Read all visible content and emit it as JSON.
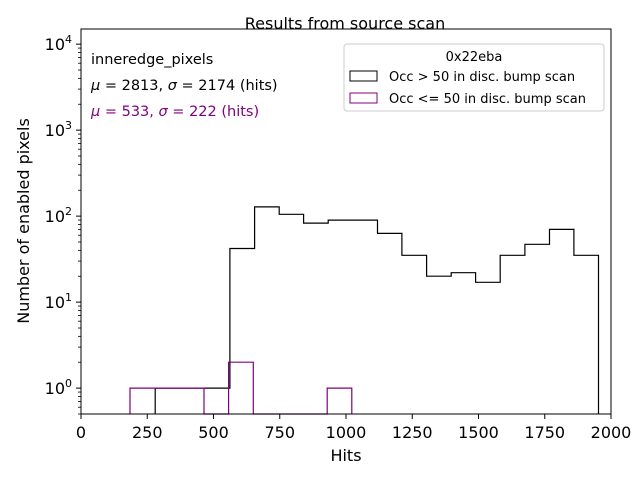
{
  "chart_data": {
    "type": "histogram",
    "title": "Results from source scan",
    "xlabel": "Hits",
    "ylabel": "Number of enabled pixels",
    "xlim": [
      0,
      2000
    ],
    "ylim": [
      0.5,
      15000
    ],
    "yscale": "log",
    "x_ticks": [
      {
        "value": 0,
        "label": "0"
      },
      {
        "value": 250,
        "label": "250"
      },
      {
        "value": 500,
        "label": "500"
      },
      {
        "value": 750,
        "label": "750"
      },
      {
        "value": 1000,
        "label": "1000"
      },
      {
        "value": 1250,
        "label": "1250"
      },
      {
        "value": 1500,
        "label": "1500"
      },
      {
        "value": 1750,
        "label": "1750"
      },
      {
        "value": 2000,
        "label": "2000"
      }
    ],
    "y_ticks": [
      {
        "value": 1,
        "base": "10",
        "exp": "0"
      },
      {
        "value": 10,
        "base": "10",
        "exp": "1"
      },
      {
        "value": 100,
        "base": "10",
        "exp": "2"
      },
      {
        "value": 1000,
        "base": "10",
        "exp": "3"
      },
      {
        "value": 10000,
        "base": "10",
        "exp": "4"
      }
    ],
    "grid": false,
    "legend": {
      "title": "0x22eba",
      "placement": "top-right",
      "entries": [
        {
          "label": "Occ > 50 in disc. bump scan",
          "color": "#000000"
        },
        {
          "label": "Occ <= 50 in disc. bump scan",
          "color": "#800080"
        }
      ]
    },
    "annotations": {
      "line1": "inneredge_pixels",
      "line2_mu": "μ",
      "line2_mid1": " = 2813, ",
      "line2_sigma": "σ",
      "line2_mid2": " = 2174 (hits)",
      "line3_mu": "μ",
      "line3_mid1": " = 533, ",
      "line3_sigma": "σ",
      "line3_mid2": " = 222 (hits)"
    },
    "series": [
      {
        "name": "Occ > 50 in disc. bump scan",
        "color": "#000000",
        "bin_edges": [
          280,
          562,
          655,
          748,
          840,
          933,
          1026,
          1119,
          1211,
          1304,
          1397,
          1489,
          1582,
          1675,
          1768,
          1860,
          1953
        ],
        "counts": [
          1,
          42,
          128,
          105,
          83,
          90,
          90,
          63,
          35,
          20,
          22,
          17,
          35,
          47,
          70,
          35
        ]
      },
      {
        "name": "Occ <= 50 in disc. bump scan",
        "color": "#800080",
        "bin_edges": [
          185,
          278,
          371,
          464,
          557,
          650,
          743,
          836,
          929,
          1022
        ],
        "counts": [
          1,
          1,
          1,
          0,
          2,
          0,
          0,
          0,
          1
        ]
      }
    ],
    "colors": {
      "black": "#000000",
      "purple": "#800080"
    }
  }
}
